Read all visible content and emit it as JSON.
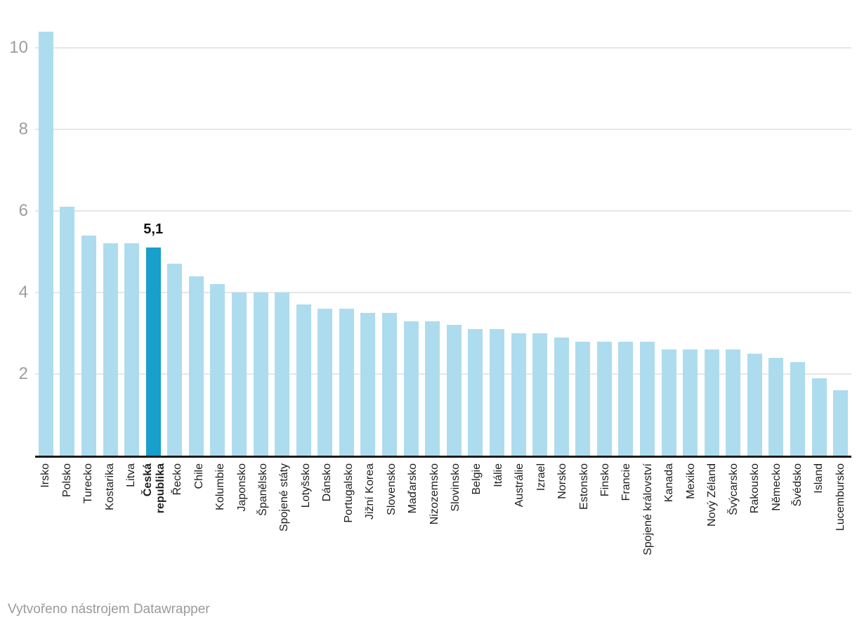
{
  "chart_data": {
    "type": "bar",
    "title": "",
    "categories": [
      "Irsko",
      "Polsko",
      "Turecko",
      "Kostarika",
      "Litva",
      "Česká republika",
      "Řecko",
      "Chile",
      "Kolumbie",
      "Japonsko",
      "Španělsko",
      "Spojené státy",
      "Lotyšsko",
      "Dánsko",
      "Portugalsko",
      "Jižní Korea",
      "Slovensko",
      "Maďarsko",
      "Nizozemsko",
      "Slovinsko",
      "Belgie",
      "Itálie",
      "Austrálie",
      "Izrael",
      "Norsko",
      "Estonsko",
      "Finsko",
      "Francie",
      "Spojené království",
      "Kanada",
      "Mexiko",
      "Nový Zéland",
      "Švýcarsko",
      "Rakousko",
      "Německo",
      "Švédsko",
      "Island",
      "Lucembursko"
    ],
    "values": [
      10.4,
      6.1,
      5.4,
      5.2,
      5.2,
      5.1,
      4.7,
      4.4,
      4.2,
      4.0,
      4.0,
      4.0,
      3.7,
      3.6,
      3.6,
      3.5,
      3.5,
      3.3,
      3.3,
      3.2,
      3.1,
      3.1,
      3.0,
      3.0,
      2.9,
      2.8,
      2.8,
      2.8,
      2.8,
      2.6,
      2.6,
      2.6,
      2.6,
      2.5,
      2.4,
      2.3,
      1.9,
      1.6
    ],
    "highlight": {
      "index": 5,
      "category": "Česká republika",
      "value": 5.1,
      "label": "5,1"
    },
    "yticks": [
      2,
      4,
      6,
      8,
      10
    ],
    "ylim": [
      0,
      10.7
    ],
    "grid": true,
    "legend": "none",
    "xlabel": "",
    "ylabel": "",
    "colors": {
      "bar": "#addcee",
      "highlight_bar": "#199fcb",
      "gridline": "#e7e7e7",
      "axis_line": "#1a1a1a",
      "tick_text": "#9d9d9d",
      "category_text": "#1d1d1d",
      "annotation_text": "#111111",
      "footer_text": "#9a9a9a"
    }
  },
  "footer": {
    "text": "Vytvořeno nástrojem Datawrapper"
  }
}
